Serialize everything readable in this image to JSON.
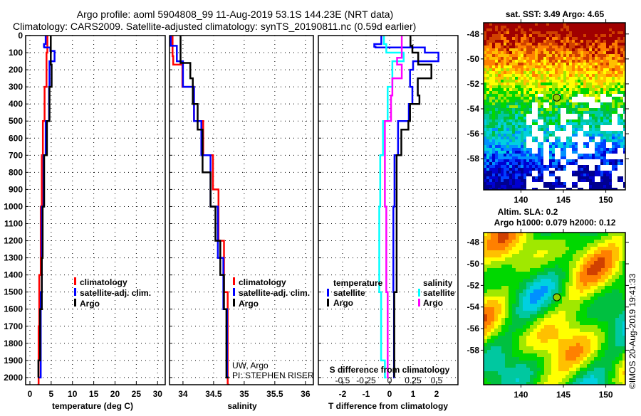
{
  "title": {
    "line1": "Argo profile: aoml 5904808_99 11-Aug-2019 53.1S 144.23E (NRT data)",
    "line2": "Climatology: CARS2009. Satellite-adjusted climatology: synTS_20190811.nc (0.59d earlier)"
  },
  "credit": {
    "line1": "UW, Argo",
    "line2": "PI: STEPHEN RISER"
  },
  "copyright": "©IMOS 20-Aug-2019 19:41:33",
  "colors": {
    "climatology": "#ff0000",
    "satellite": "#0000ff",
    "argo": "#000000",
    "sal_satellite": "#00ffff",
    "sal_argo": "#ff00ff"
  },
  "chart_data": [
    {
      "type": "line",
      "name": "temperature-profile",
      "xlabel": "temperature (deg C)",
      "ylabel": "",
      "xlim": [
        -1.0,
        31.8
      ],
      "ylim": [
        2042,
        0
      ],
      "xticks": [
        "0",
        "5",
        "10",
        "15",
        "20",
        "25",
        "30"
      ],
      "xtick_values": [
        0,
        5,
        10,
        15,
        20,
        25,
        30
      ],
      "yticks": [
        "0",
        "100",
        "200",
        "300",
        "400",
        "500",
        "600",
        "700",
        "800",
        "900",
        "1000",
        "1100",
        "1200",
        "1300",
        "1400",
        "1500",
        "1600",
        "1700",
        "1800",
        "1900",
        "2000"
      ],
      "grid": true,
      "legend": {
        "placement": "lower-center",
        "entries": [
          "climatology",
          "satellite-adj. clim.",
          "Argo"
        ]
      },
      "series": [
        {
          "name": "climatology",
          "color": "#ff0000",
          "depth": [
            0,
            100,
            300,
            500,
            700,
            1000,
            1400,
            1700,
            2042
          ],
          "values": [
            4.1,
            3.9,
            3.45,
            3.05,
            2.8,
            2.55,
            2.2,
            2.05,
            1.8
          ]
        },
        {
          "name": "satellite-adj. clim.",
          "color": "#0000ff",
          "depth": [
            0,
            50,
            65,
            70,
            90,
            150,
            300,
            500,
            700,
            1000,
            1500,
            2000
          ],
          "values": [
            3.7,
            3.3,
            3.4,
            4.8,
            5.8,
            4.6,
            4.5,
            3.7,
            3.2,
            2.8,
            2.55,
            2.2
          ]
        },
        {
          "name": "Argo",
          "color": "#000000",
          "depth": [
            0,
            100,
            170,
            300,
            500,
            700,
            1000,
            1300,
            1600,
            1900,
            2000
          ],
          "values": [
            4.9,
            4.9,
            5.1,
            4.6,
            4.0,
            3.35,
            3.0,
            2.8,
            2.4,
            2.0,
            1.95
          ]
        }
      ]
    },
    {
      "type": "line",
      "name": "salinity-profile",
      "xlabel": "salinity",
      "xlim": [
        33.78,
        36.13
      ],
      "ylim": [
        2042,
        0
      ],
      "xticks": [
        "34",
        "34.5",
        "35",
        "35.5",
        "36"
      ],
      "xtick_values": [
        34,
        34.5,
        35,
        35.5,
        36
      ],
      "grid": true,
      "legend": {
        "placement": "lower-right",
        "entries": [
          "climatology",
          "satellite-adj. clim.",
          "Argo"
        ]
      },
      "series": [
        {
          "name": "climatology",
          "color": "#ff0000",
          "depth": [
            0,
            120,
            170,
            300,
            500,
            700,
            900,
            1200,
            1500,
            2042
          ],
          "values": [
            33.83,
            33.84,
            33.99,
            34.18,
            34.33,
            34.49,
            34.58,
            34.67,
            34.73,
            34.76
          ]
        },
        {
          "name": "satellite-adj. clim.",
          "color": "#0000ff",
          "depth": [
            0,
            60,
            150,
            300,
            500,
            700,
            1000,
            1300,
            1600,
            2000
          ],
          "values": [
            33.8,
            33.9,
            34.0,
            34.18,
            34.3,
            34.45,
            34.57,
            34.66,
            34.72,
            34.75
          ]
        },
        {
          "name": "Argo",
          "color": "#000000",
          "depth": [
            0,
            150,
            160,
            250,
            400,
            550,
            800,
            1000,
            1200,
            1400,
            1600,
            2000
          ],
          "values": [
            33.96,
            33.96,
            34.12,
            34.16,
            34.24,
            34.32,
            34.45,
            34.53,
            34.61,
            34.67,
            34.71,
            34.75
          ]
        }
      ]
    },
    {
      "type": "line",
      "name": "difference-profile",
      "xlabel": "T difference from climatology",
      "xlabel2": "S difference from climatology",
      "xlim": [
        -3.03,
        2.91
      ],
      "xlim_salinity": [
        -0.7575,
        0.7275
      ],
      "ylim": [
        2042,
        0
      ],
      "xticks": [
        "-2",
        "-1",
        "0",
        "1",
        "2"
      ],
      "xtick_values": [
        -2,
        -1,
        0,
        1,
        2
      ],
      "xticks2": [
        "-0.5",
        "-0.25",
        "0",
        "0.25",
        "0.5"
      ],
      "xtick_values2": [
        -0.5,
        -0.25,
        0,
        0.25,
        0.5
      ],
      "grid": true,
      "legend": {
        "placement": "lower",
        "temperature_heading": "temperature",
        "salinity_heading": "salinity",
        "entries": [
          "satellite",
          "Argo",
          "satellite",
          "Argo"
        ]
      },
      "series": [
        {
          "name": "temperature satellite",
          "axis": "T",
          "color": "#0000ff",
          "depth": [
            0,
            50,
            65,
            70,
            100,
            150,
            200,
            300,
            400,
            500,
            700,
            1000,
            1500,
            2000
          ],
          "values": [
            -0.35,
            -0.65,
            -0.6,
            1.5,
            2.08,
            1.0,
            0.87,
            0.97,
            0.82,
            0.36,
            0.21,
            0.16,
            0.19,
            0.21
          ]
        },
        {
          "name": "temperature Argo",
          "axis": "T",
          "color": "#000000",
          "depth": [
            0,
            60,
            100,
            170,
            250,
            350,
            400,
            500,
            550,
            700,
            1000,
            1500,
            2000
          ],
          "values": [
            0.89,
            0.97,
            1.22,
            1.78,
            1.2,
            1.27,
            0.87,
            0.8,
            0.5,
            0.3,
            0.3,
            0.2,
            0.2
          ]
        },
        {
          "name": "salinity satellite",
          "axis": "S",
          "color": "#00ffff",
          "depth": [
            0,
            50,
            100,
            150,
            300,
            500,
            700,
            1000,
            1500,
            1900,
            2000
          ],
          "values": [
            -0.06,
            -0.035,
            0.15,
            0.03,
            -0.02,
            -0.07,
            -0.1,
            -0.11,
            -0.09,
            -0.05,
            -0.035
          ]
        },
        {
          "name": "salinity Argo",
          "axis": "S",
          "color": "#ff00ff",
          "depth": [
            0,
            100,
            130,
            170,
            250,
            350,
            500,
            700,
            1000,
            1500,
            2000
          ],
          "values": [
            0.13,
            0.13,
            0.08,
            0.13,
            0.03,
            0.015,
            -0.05,
            -0.05,
            -0.035,
            -0.02,
            -0.01
          ]
        }
      ]
    },
    {
      "type": "heatmap",
      "name": "sst-map",
      "title": "sat. SST: 3.49 Argo: 4.65",
      "xlim": [
        135.6,
        152.3
      ],
      "ylim": [
        -60.5,
        -47.1
      ],
      "xticks": [
        "140",
        "145",
        "150"
      ],
      "xtick_values": [
        140,
        145,
        150
      ],
      "yticks": [
        "-48",
        "-50",
        "-52",
        "-54",
        "-56",
        "-58"
      ],
      "ytick_values": [
        -48,
        -50,
        -52,
        -54,
        -56,
        -58
      ],
      "marker": {
        "lon": 144.23,
        "lat": -53.1
      }
    },
    {
      "type": "heatmap",
      "name": "sla-map",
      "title": "Altim. SLA: 0.2",
      "subtitle": "Argo h1000: 0.079 h2000: 0.12",
      "xlim": [
        135.6,
        152.3
      ],
      "ylim": [
        -61.2,
        -47.1
      ],
      "xticks": [
        "140",
        "145",
        "150"
      ],
      "xtick_values": [
        140,
        145,
        150
      ],
      "yticks": [
        "-48",
        "-50",
        "-52",
        "-54",
        "-56",
        "-58"
      ],
      "ytick_values": [
        -48,
        -50,
        -52,
        -54,
        -56,
        -58
      ],
      "marker": {
        "lon": 144.23,
        "lat": -53.1
      }
    }
  ]
}
